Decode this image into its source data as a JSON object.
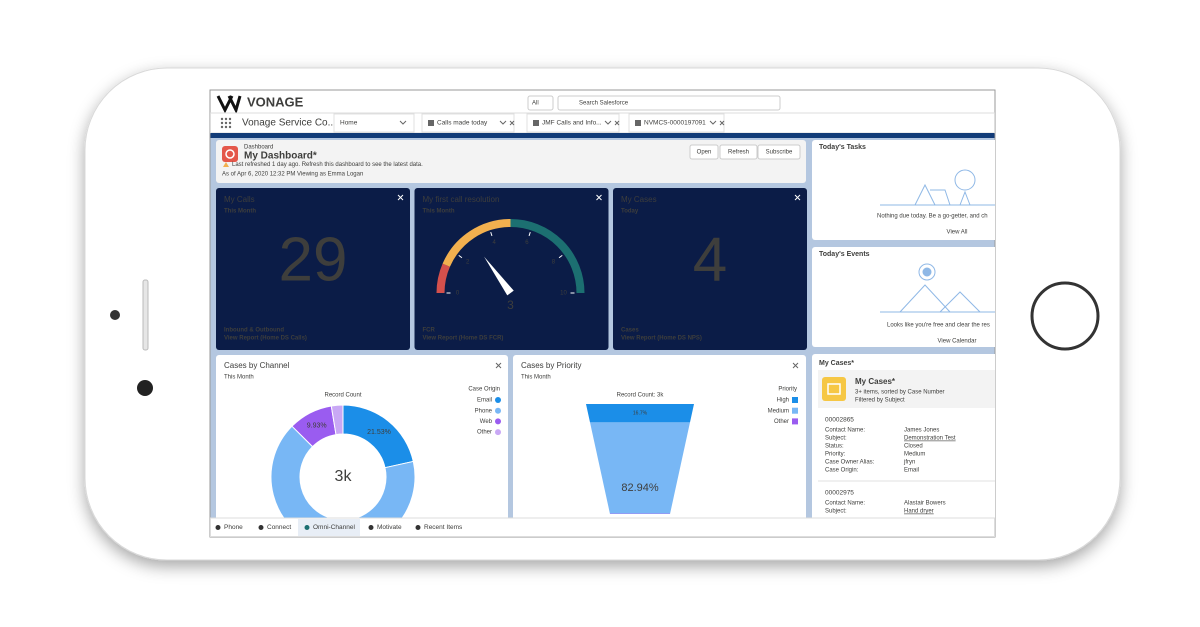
{
  "header": {
    "brand": "VONAGE",
    "search_scope": "All",
    "search_placeholder": "Search Salesforce"
  },
  "nav": {
    "app_name": "Vonage Service Co...",
    "tabs": [
      "Home",
      "Calls made today",
      "JMF Calls and Info...",
      "NVMCS-0000197091"
    ]
  },
  "dashboard": {
    "label": "Dashboard",
    "title": "My Dashboard*",
    "notice": "Last refreshed 1 day ago. Refresh this dashboard to see the latest data.",
    "as_of": "As of Apr 6, 2020 12:32 PM Viewing as Emma Logan",
    "buttons": [
      "Open",
      "Refresh",
      "Subscribe"
    ]
  },
  "metrics": [
    {
      "title": "My Calls",
      "period": "This Month",
      "value": 29,
      "footer": "Inbound & Outbound",
      "link": "View Report (Home DS Calls)"
    },
    {
      "title": "My first call resolution",
      "period": "This Month",
      "gauge": {
        "type": "gauge",
        "range": [
          0,
          10
        ],
        "ticks": [
          0,
          2,
          4,
          6,
          8,
          10
        ],
        "value": 3,
        "bands": [
          {
            "to": 1.3,
            "color": "#d4504c"
          },
          {
            "to": 5,
            "color": "#f2b04f"
          },
          {
            "to": 10,
            "color": "#1c6f71"
          }
        ]
      },
      "footer": "FCR",
      "link": "View Report (Home DS FCR)"
    },
    {
      "title": "My Cases",
      "period": "Today",
      "value": 4,
      "footer": "Cases",
      "link": "View Report (Home DS NPS)"
    }
  ],
  "charts": [
    {
      "type": "donut",
      "title": "Cases by Channel",
      "subtitle": "This Month",
      "axis_label": "Record Count",
      "legend_title": "Case Origin",
      "center_label": "3k",
      "categories": [
        "Email",
        "Phone",
        "Web",
        "Other"
      ],
      "values": [
        21.53,
        65.94,
        9.93,
        2.6
      ],
      "value_labels": [
        "21.53%",
        null,
        "9.93%",
        null
      ],
      "colors": [
        "#1b8ee8",
        "#78b7f5",
        "#9a5cf0",
        "#c9a8f5"
      ]
    },
    {
      "type": "funnel",
      "title": "Cases by Priority",
      "subtitle": "This Month",
      "axis_label": "Record Count: 3k",
      "legend_title": "Priority",
      "categories": [
        "High",
        "Medium",
        "Other"
      ],
      "values": [
        16.7,
        82.94,
        0.36
      ],
      "value_labels": [
        "16.7%",
        "82.94%",
        null
      ],
      "colors": [
        "#1b8ee8",
        "#78b7f5",
        "#9a5cf0"
      ]
    }
  ],
  "tasks": {
    "title": "Today's Tasks",
    "message": "Nothing due today. Be a go-getter, and ch",
    "link": "View All"
  },
  "events": {
    "title": "Today's Events",
    "message": "Looks like you're free and clear the res",
    "link": "View Calendar"
  },
  "my_cases": {
    "list_title": "My Cases*",
    "title": "My Cases*",
    "summary": "3+ items, sorted by Case Number",
    "filter": "Filtered by Subject",
    "records": [
      {
        "number": "00002865",
        "fields": [
          {
            "label": "Contact Name:",
            "value": "James Jones"
          },
          {
            "label": "Subject:",
            "value": "Demonstration Test"
          },
          {
            "label": "Status:",
            "value": "Closed"
          },
          {
            "label": "Priority:",
            "value": "Medium"
          },
          {
            "label": "Case Owner Alias:",
            "value": "jfryn"
          },
          {
            "label": "Case Origin:",
            "value": "Email"
          }
        ]
      },
      {
        "number": "00002975",
        "fields": [
          {
            "label": "Contact Name:",
            "value": "Alastair Bowers"
          },
          {
            "label": "Subject:",
            "value": "Hand dryer"
          }
        ]
      }
    ]
  },
  "footer": [
    "Phone",
    "Connect",
    "Omni-Channel",
    "Motivate",
    "Recent Items"
  ]
}
